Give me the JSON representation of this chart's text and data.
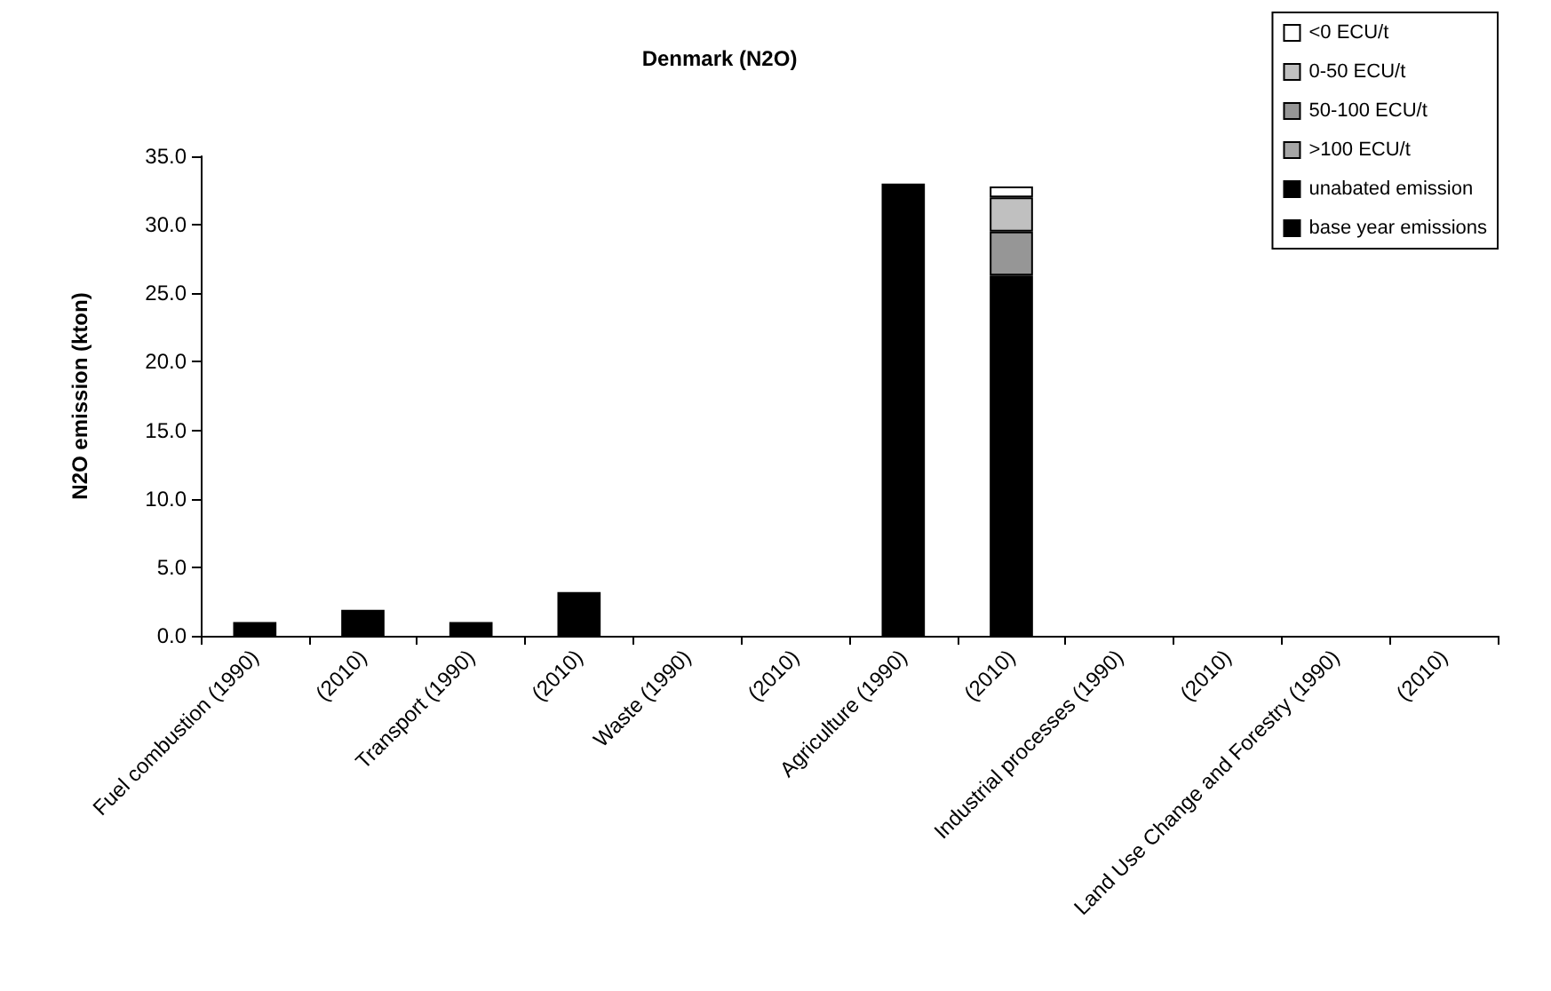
{
  "chart_data": {
    "type": "bar",
    "title": "Denmark (N2O)",
    "ylabel": "N2O emission (kton)",
    "categories": [
      "Fuel combustion (1990)",
      "(2010)",
      "Transport (1990)",
      "(2010)",
      "Waste (1990)",
      "(2010)",
      "Agriculture (1990)",
      "(2010)",
      "Industrial processes (1990)",
      "(2010)",
      "Land Use Change and Forestry (1990)",
      "(2010)"
    ],
    "stacked": true,
    "series": [
      {
        "name": "base year emissions",
        "color": "#000000",
        "values": [
          1.0,
          null,
          1.0,
          null,
          0,
          null,
          33.0,
          null,
          0,
          null,
          0,
          null
        ]
      },
      {
        "name": "unabated emission",
        "color": "#000000",
        "values": [
          null,
          1.9,
          null,
          3.2,
          null,
          0,
          null,
          26.3,
          null,
          0,
          null,
          0
        ]
      },
      {
        "name": ">100 ECU/t",
        "color": "#a6a6a6",
        "values": [
          null,
          0,
          null,
          0,
          null,
          0,
          null,
          0,
          null,
          0,
          null,
          0
        ]
      },
      {
        "name": "50-100 ECU/t",
        "color": "#969696",
        "values": [
          null,
          0,
          null,
          0,
          null,
          0,
          null,
          3.2,
          null,
          0,
          null,
          0
        ]
      },
      {
        "name": "0-50 ECU/t",
        "color": "#c0c0c0",
        "values": [
          null,
          0,
          null,
          0,
          null,
          0,
          null,
          2.5,
          null,
          0,
          null,
          0
        ]
      },
      {
        "name": "<0 ECU/t",
        "color": "#ffffff",
        "values": [
          null,
          0,
          null,
          0,
          null,
          0,
          null,
          0.8,
          null,
          0,
          null,
          0
        ]
      }
    ],
    "ylim": [
      0,
      35
    ],
    "yticks": [
      {
        "value": 0,
        "label": "0.0"
      },
      {
        "value": 5,
        "label": "5.0"
      },
      {
        "value": 10,
        "label": "10.0"
      },
      {
        "value": 15,
        "label": "15.0"
      },
      {
        "value": 20,
        "label": "20.0"
      },
      {
        "value": 25,
        "label": "25.0"
      },
      {
        "value": 30,
        "label": "30.0"
      },
      {
        "value": 35,
        "label": "35.0"
      }
    ],
    "grid": false,
    "legend": "top right"
  }
}
